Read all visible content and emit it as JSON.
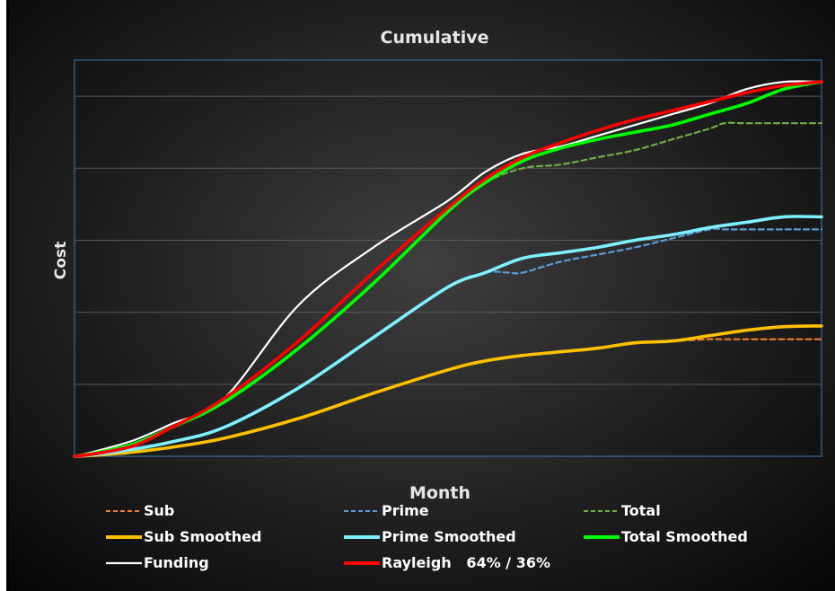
{
  "chart_data": {
    "type": "line",
    "title": "Cumulative",
    "xlabel": "Month",
    "ylabel": "Cost",
    "xlim": [
      0,
      100
    ],
    "ylim": [
      0,
      100
    ],
    "grid": "horizontal",
    "legend_placement": "bottom",
    "series": [
      {
        "name": "Sub",
        "style": "dashed",
        "color": "#ed7d31",
        "x": [
          0,
          3,
          8,
          13,
          20,
          30,
          40,
          50,
          55,
          60,
          65,
          70,
          75,
          80,
          85,
          87,
          90,
          93,
          95,
          100
        ],
        "y": [
          0,
          0.3,
          1.2,
          2.5,
          5,
          10.5,
          17.5,
          24,
          26.5,
          28,
          29,
          30,
          31.5,
          32,
          32.5,
          32.5,
          32.5,
          32.5,
          32.5,
          32.5
        ]
      },
      {
        "name": "Sub Smoothed",
        "style": "solid",
        "color": "#ffc000",
        "x": [
          0,
          3,
          8,
          13,
          20,
          30,
          40,
          50,
          55,
          60,
          65,
          70,
          75,
          80,
          85,
          90,
          95,
          100
        ],
        "y": [
          0,
          0.3,
          1.2,
          2.5,
          5,
          10.5,
          17.5,
          24,
          26.5,
          28,
          29,
          30,
          31.5,
          32,
          33.5,
          35,
          36,
          36.2
        ]
      },
      {
        "name": "Prime",
        "style": "dashed",
        "color": "#5b9bd5",
        "x": [
          0,
          3,
          8,
          13,
          20,
          30,
          40,
          50,
          55,
          58,
          60,
          65,
          70,
          75,
          80,
          85,
          87,
          90,
          95,
          100
        ],
        "y": [
          0,
          0.5,
          2,
          4,
          8,
          19,
          33,
          47,
          51,
          51,
          51,
          54,
          56,
          58,
          60.5,
          63,
          63,
          63,
          63,
          63
        ]
      },
      {
        "name": "Prime Smoothed",
        "style": "solid",
        "color": "#7ff0ff",
        "x": [
          0,
          3,
          8,
          13,
          20,
          30,
          40,
          50,
          55,
          60,
          65,
          70,
          75,
          80,
          85,
          90,
          95,
          100
        ],
        "y": [
          0,
          0.5,
          2,
          4,
          8,
          19,
          33,
          47,
          51,
          55,
          56.5,
          58,
          60,
          61.5,
          63.5,
          65,
          66.5,
          66.5
        ]
      },
      {
        "name": "Total",
        "style": "dashed",
        "color": "#70ad47",
        "x": [
          0,
          3,
          8,
          13,
          20,
          30,
          40,
          50,
          55,
          60,
          65,
          70,
          75,
          80,
          85,
          87,
          90,
          95,
          100
        ],
        "y": [
          0,
          1,
          3.5,
          8,
          15,
          30,
          48,
          68,
          76,
          80,
          81,
          83,
          85,
          88,
          91,
          92.5,
          92.5,
          92.5,
          92.5
        ]
      },
      {
        "name": "Total Smoothed",
        "style": "solid",
        "color": "#00ff00",
        "x": [
          0,
          3,
          8,
          13,
          20,
          30,
          40,
          50,
          55,
          60,
          65,
          70,
          75,
          80,
          85,
          90,
          95,
          100
        ],
        "y": [
          0,
          1,
          3.5,
          8,
          15,
          30,
          48,
          68,
          76,
          82,
          85.5,
          88,
          90,
          92,
          95,
          98,
          102,
          104
        ]
      },
      {
        "name": "Funding",
        "style": "solid",
        "color": "#ffffff",
        "x": [
          0,
          3,
          8,
          13,
          20,
          30,
          40,
          50,
          55,
          60,
          65,
          70,
          75,
          80,
          85,
          90,
          95,
          100
        ],
        "y": [
          0,
          1.5,
          4.5,
          9,
          16,
          42,
          58,
          71,
          79,
          84,
          86,
          89,
          92,
          95,
          98,
          102,
          104,
          104
        ]
      },
      {
        "name": "Rayleigh   64% / 36%",
        "style": "solid",
        "color": "#ff0000",
        "x": [
          0,
          3,
          8,
          13,
          20,
          30,
          40,
          50,
          55,
          60,
          65,
          70,
          75,
          80,
          85,
          90,
          95,
          100
        ],
        "y": [
          0,
          0.8,
          3,
          8,
          16,
          32,
          51,
          69,
          77,
          83,
          87,
          90.5,
          93.5,
          96,
          98.5,
          101,
          103,
          104
        ]
      }
    ]
  }
}
